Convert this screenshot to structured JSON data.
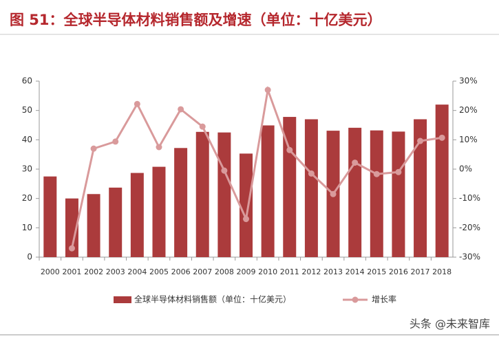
{
  "chart_data": {
    "type": "bar",
    "title": "图 51：全球半导体材料销售额及增速（单位：十亿美元）",
    "categories": [
      "2000",
      "2001",
      "2002",
      "2003",
      "2004",
      "2005",
      "2006",
      "2007",
      "2008",
      "2009",
      "2010",
      "2011",
      "2012",
      "2013",
      "2014",
      "2015",
      "2016",
      "2017",
      "2018"
    ],
    "series": [
      {
        "name": "全球半导体材料销售额（单位：十亿美元）",
        "type": "bar",
        "color": "#ab3b3c",
        "values": [
          27.5,
          20,
          21.5,
          23.7,
          28.7,
          30.8,
          37.2,
          42.7,
          42.5,
          35.3,
          44.9,
          47.8,
          47,
          43.1,
          44.1,
          43.2,
          42.8,
          47,
          52
        ]
      },
      {
        "name": "增长率",
        "type": "line",
        "axis": "y2",
        "color": "#d99a9b",
        "values": [
          null,
          -27,
          7,
          9.4,
          22.2,
          7.5,
          20.4,
          14.5,
          -0.5,
          -17,
          27,
          6.5,
          -1.5,
          -8.5,
          2.2,
          -1.7,
          -1,
          9.6,
          10.7
        ]
      }
    ],
    "ylim": [
      0,
      60
    ],
    "yticks": [
      0,
      10,
      20,
      30,
      40,
      50,
      60
    ],
    "y2lim": [
      -30,
      30
    ],
    "y2ticks": [
      {
        "value": -30,
        "label": "-30%"
      },
      {
        "value": -20,
        "label": "-20%"
      },
      {
        "value": -10,
        "label": "-10%"
      },
      {
        "value": 0,
        "label": "0%"
      },
      {
        "value": 10,
        "label": "10%"
      },
      {
        "value": 20,
        "label": "20%"
      },
      {
        "value": 30,
        "label": "30%"
      }
    ],
    "grid": false,
    "legend": "bottom"
  },
  "watermark": "头条 @未来智库"
}
